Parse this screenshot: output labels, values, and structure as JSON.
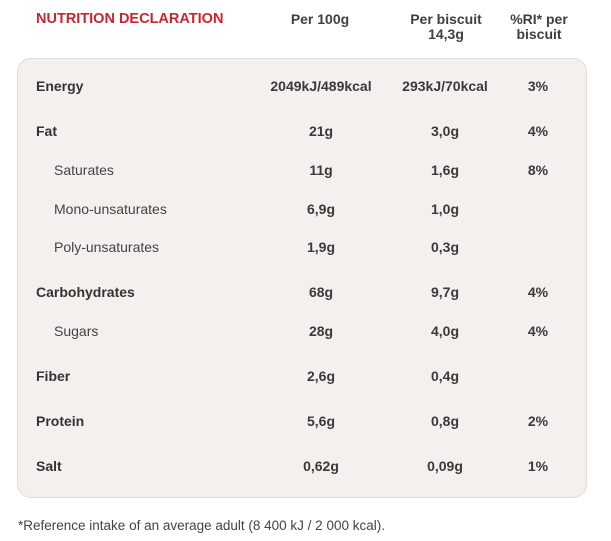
{
  "header": {
    "title": "NUTRITION DECLARATION",
    "col1": "Per 100g",
    "col2_line1": "Per biscuit",
    "col2_line2": "14,3g",
    "col3_line1": "%RI* per",
    "col3_line2": "biscuit"
  },
  "rows": [
    {
      "label": "Energy",
      "per100g": "2049kJ/489kcal",
      "perBiscuit": "293kJ/70kcal",
      "ri": "3%"
    },
    {
      "label": "Fat",
      "per100g": "21g",
      "perBiscuit": "3,0g",
      "ri": "4%"
    },
    {
      "label": "Saturates",
      "per100g": "11g",
      "perBiscuit": "1,6g",
      "ri": "8%"
    },
    {
      "label": "Mono-unsaturates",
      "per100g": "6,9g",
      "perBiscuit": "1,0g",
      "ri": ""
    },
    {
      "label": "Poly-unsaturates",
      "per100g": "1,9g",
      "perBiscuit": "0,3g",
      "ri": ""
    },
    {
      "label": "Carbohydrates",
      "per100g": "68g",
      "perBiscuit": "9,7g",
      "ri": "4%"
    },
    {
      "label": "Sugars",
      "per100g": "28g",
      "perBiscuit": "4,0g",
      "ri": "4%"
    },
    {
      "label": "Fiber",
      "per100g": "2,6g",
      "perBiscuit": "0,4g",
      "ri": ""
    },
    {
      "label": "Protein",
      "per100g": "5,6g",
      "perBiscuit": "0,8g",
      "ri": "2%"
    },
    {
      "label": "Salt",
      "per100g": "0,62g",
      "perBiscuit": "0,09g",
      "ri": "1%"
    }
  ],
  "footnote": "*Reference intake of an average adult (8 400 kJ / 2 000 kcal)."
}
